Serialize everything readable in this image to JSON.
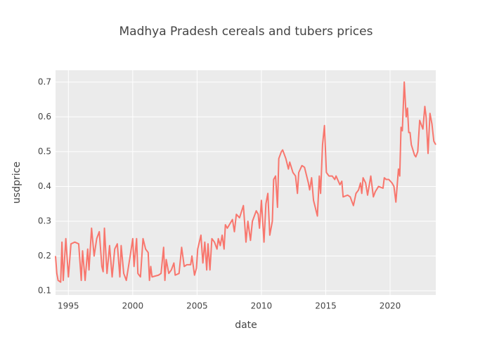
{
  "chart_data": {
    "type": "line",
    "title": "Madhya Pradesh cereals and tubers prices",
    "x_label": "date",
    "y_label": "usdprice",
    "x": [
      1994.0,
      1994.1,
      1994.2,
      1994.4,
      1994.5,
      1994.6,
      1994.8,
      1995.0,
      1995.2,
      1995.5,
      1995.8,
      1996.0,
      1996.1,
      1996.3,
      1996.5,
      1996.6,
      1996.8,
      1997.0,
      1997.2,
      1997.4,
      1997.6,
      1997.7,
      1997.8,
      1998.0,
      1998.2,
      1998.4,
      1998.6,
      1998.8,
      1999.0,
      1999.1,
      1999.3,
      1999.5,
      1999.8,
      2000.0,
      2000.1,
      2000.3,
      2000.4,
      2000.6,
      2000.8,
      2001.0,
      2001.2,
      2001.3,
      2001.4,
      2001.5,
      2002.0,
      2002.2,
      2002.4,
      2002.5,
      2002.6,
      2002.8,
      2003.0,
      2003.2,
      2003.3,
      2003.6,
      2003.8,
      2004.0,
      2004.2,
      2004.5,
      2004.6,
      2004.8,
      2004.95,
      2005.05,
      2005.3,
      2005.45,
      2005.6,
      2005.75,
      2005.85,
      2006.0,
      2006.15,
      2006.35,
      2006.55,
      2006.65,
      2006.8,
      2006.95,
      2007.1,
      2007.2,
      2007.35,
      2007.75,
      2007.9,
      2008.05,
      2008.3,
      2008.6,
      2008.8,
      2008.95,
      2009.15,
      2009.3,
      2009.6,
      2009.75,
      2009.85,
      2010.0,
      2010.2,
      2010.35,
      2010.5,
      2010.65,
      2010.85,
      2010.95,
      2011.1,
      2011.25,
      2011.35,
      2011.55,
      2011.65,
      2011.9,
      2012.1,
      2012.2,
      2012.45,
      2012.65,
      2012.8,
      2012.9,
      2013.15,
      2013.35,
      2013.65,
      2013.75,
      2013.9,
      2014.05,
      2014.35,
      2014.5,
      2014.6,
      2014.75,
      2014.9,
      2015.05,
      2015.25,
      2015.5,
      2015.7,
      2015.8,
      2016.1,
      2016.25,
      2016.35,
      2016.7,
      2016.9,
      2017.15,
      2017.35,
      2017.55,
      2017.7,
      2017.8,
      2017.9,
      2018.1,
      2018.25,
      2018.5,
      2018.7,
      2018.85,
      2019.1,
      2019.45,
      2019.55,
      2019.7,
      2019.9,
      2020.15,
      2020.3,
      2020.45,
      2020.65,
      2020.75,
      2020.85,
      2020.95,
      2021.1,
      2021.25,
      2021.35,
      2021.45,
      2021.55,
      2021.65,
      2021.9,
      2022.0,
      2022.15,
      2022.3,
      2022.55,
      2022.7,
      2022.8,
      2022.95,
      2023.1,
      2023.25,
      2023.4,
      2023.55
    ],
    "values": [
      0.2,
      0.15,
      0.13,
      0.125,
      0.24,
      0.13,
      0.25,
      0.14,
      0.235,
      0.24,
      0.235,
      0.13,
      0.215,
      0.13,
      0.22,
      0.16,
      0.28,
      0.2,
      0.25,
      0.27,
      0.17,
      0.155,
      0.28,
      0.15,
      0.23,
      0.14,
      0.22,
      0.235,
      0.14,
      0.23,
      0.15,
      0.13,
      0.2,
      0.25,
      0.17,
      0.25,
      0.15,
      0.14,
      0.25,
      0.22,
      0.21,
      0.13,
      0.17,
      0.14,
      0.145,
      0.15,
      0.225,
      0.13,
      0.19,
      0.15,
      0.16,
      0.18,
      0.145,
      0.15,
      0.225,
      0.17,
      0.175,
      0.175,
      0.2,
      0.145,
      0.165,
      0.22,
      0.26,
      0.18,
      0.24,
      0.16,
      0.235,
      0.16,
      0.25,
      0.24,
      0.22,
      0.25,
      0.23,
      0.26,
      0.22,
      0.29,
      0.28,
      0.305,
      0.27,
      0.32,
      0.31,
      0.345,
      0.24,
      0.3,
      0.245,
      0.3,
      0.33,
      0.32,
      0.28,
      0.36,
      0.24,
      0.35,
      0.38,
      0.26,
      0.3,
      0.42,
      0.43,
      0.34,
      0.48,
      0.5,
      0.505,
      0.48,
      0.45,
      0.47,
      0.44,
      0.43,
      0.38,
      0.44,
      0.46,
      0.455,
      0.41,
      0.39,
      0.425,
      0.36,
      0.315,
      0.43,
      0.38,
      0.52,
      0.575,
      0.44,
      0.43,
      0.43,
      0.42,
      0.43,
      0.405,
      0.415,
      0.37,
      0.375,
      0.37,
      0.345,
      0.38,
      0.39,
      0.41,
      0.38,
      0.425,
      0.41,
      0.375,
      0.43,
      0.37,
      0.385,
      0.4,
      0.395,
      0.425,
      0.42,
      0.42,
      0.41,
      0.4,
      0.355,
      0.45,
      0.43,
      0.57,
      0.56,
      0.7,
      0.6,
      0.625,
      0.555,
      0.555,
      0.52,
      0.49,
      0.485,
      0.5,
      0.59,
      0.565,
      0.63,
      0.6,
      0.495,
      0.61,
      0.58,
      0.53,
      0.52
    ],
    "color": "#F8766D",
    "xlim": [
      1994.0,
      2023.55
    ],
    "xticks": [
      1995,
      2000,
      2005,
      2010,
      2015,
      2020
    ],
    "ylim": [
      0.088,
      0.734
    ],
    "yticks": [
      0.1,
      0.2,
      0.3,
      0.4,
      0.5,
      0.6,
      0.7
    ],
    "grid": true
  }
}
